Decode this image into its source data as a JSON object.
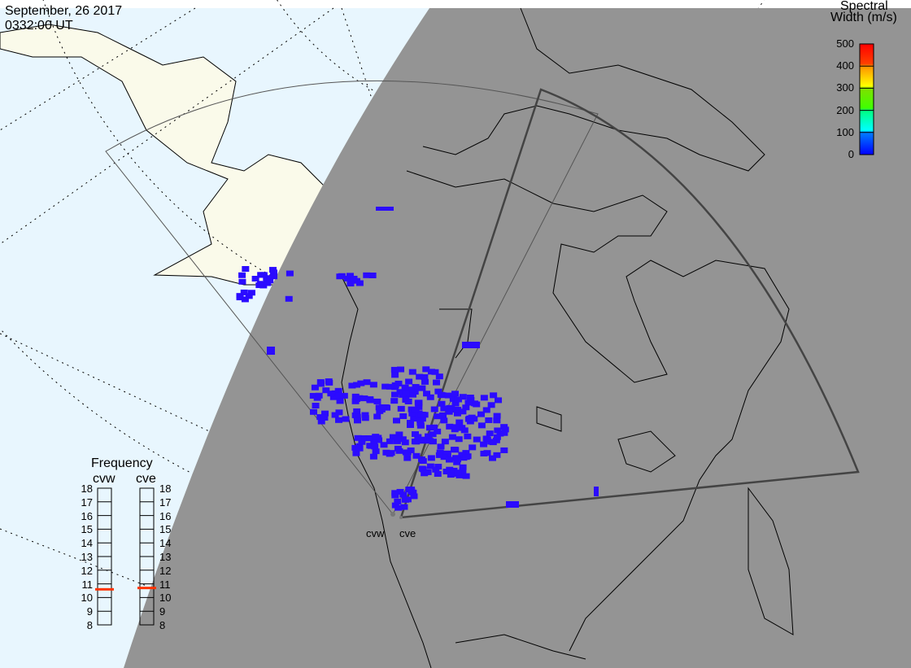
{
  "header": {
    "date": "September, 26 2017",
    "time": "0332:00 UT"
  },
  "colorbar": {
    "title_line1": "Spectral",
    "title_line2": "Width (m/s)",
    "ticks": [
      "0",
      "100",
      "200",
      "300",
      "400",
      "500"
    ],
    "range": [
      0,
      500
    ],
    "colors": [
      "#0000ff",
      "#00ffff",
      "#00ff00",
      "#ffff00",
      "#ff8000",
      "#ff0000"
    ]
  },
  "radars": [
    {
      "name": "cvw"
    },
    {
      "name": "cve"
    }
  ],
  "frequency_panel": {
    "title": "Frequency",
    "ticks": [
      "8",
      "9",
      "10",
      "11",
      "12",
      "13",
      "14",
      "15",
      "16",
      "17",
      "18"
    ],
    "range_mhz": [
      8,
      18
    ],
    "cvw_mhz": 10.6,
    "cve_mhz": 10.7,
    "marker_color": "#ff3300"
  },
  "colors": {
    "ocean_day": "#e8f6fe",
    "land_day": "#fafaea",
    "night": "#949494",
    "data": "#2b0bff"
  }
}
